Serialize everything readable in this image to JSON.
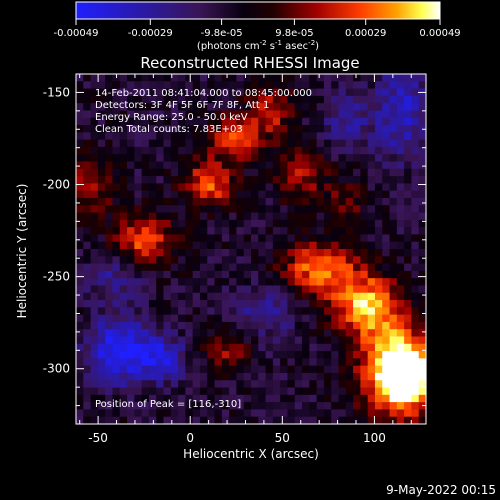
{
  "chart_data": {
    "type": "heatmap",
    "title": "Reconstructed RHESSI Image",
    "xlabel": "Heliocentric X (arcsec)",
    "ylabel": "Heliocentric Y (arcsec)",
    "xlim": [
      -62,
      128
    ],
    "ylim": [
      -330,
      -140
    ],
    "x_ticks": [
      -50,
      0,
      50,
      100
    ],
    "y_ticks": [
      -150,
      -200,
      -250,
      -300
    ],
    "colorbar": {
      "colormap": "RHESSI blue-black-red-yellow-white",
      "range": [
        -0.00049,
        0.00049
      ],
      "tick_values": [
        -0.00049,
        -0.00029,
        -9.8e-05,
        9.8e-05,
        0.00029,
        0.00049
      ],
      "tick_labels": [
        "-0.00049",
        "-0.00029",
        "-9.8e-05",
        "9.8e-05",
        "0.00029",
        "0.00049"
      ],
      "units_label": "(photons cm",
      "units_sup1": "-2",
      "units_mid": " s",
      "units_sup2": "-1",
      "units_mid2": " asec",
      "units_sup3": "-2",
      "units_end": ")"
    },
    "annotations": [
      "14-Feb-2011 08:41:04.000 to 08:45:00.000",
      "Detectors: 3F 4F 5F 6F 7F 8F, Att 1",
      "Energy Range: 25.0 - 50.0 keV",
      "Clean     Total counts: 7.83E+03"
    ],
    "peak_label": "Position of Peak = [116,-310]",
    "peak": [
      116,
      -310
    ],
    "features_note_values": {
      "bright_regions": [
        {
          "x": 110,
          "y": -300,
          "level": 1.0,
          "sx": 14,
          "sy": 18
        },
        {
          "x": 95,
          "y": -265,
          "level": 0.95,
          "sx": 13,
          "sy": 12
        },
        {
          "x": 70,
          "y": -245,
          "level": 0.85,
          "sx": 14,
          "sy": 10
        },
        {
          "x": 118,
          "y": -305,
          "level": 1.0,
          "sx": 10,
          "sy": 12
        },
        {
          "x": -25,
          "y": -230,
          "level": 0.75,
          "sx": 12,
          "sy": 10
        },
        {
          "x": 10,
          "y": -200,
          "level": 0.75,
          "sx": 10,
          "sy": 9
        },
        {
          "x": 25,
          "y": -175,
          "level": 0.65,
          "sx": 11,
          "sy": 9
        },
        {
          "x": 45,
          "y": -160,
          "level": 0.55,
          "sx": 9,
          "sy": 9
        },
        {
          "x": -55,
          "y": -200,
          "level": 0.55,
          "sx": 9,
          "sy": 12
        },
        {
          "x": 20,
          "y": -290,
          "level": 0.45,
          "sx": 9,
          "sy": 8
        },
        {
          "x": 60,
          "y": -195,
          "level": 0.55,
          "sx": 10,
          "sy": 10
        },
        {
          "x": 85,
          "y": -210,
          "level": 0.4,
          "sx": 8,
          "sy": 8
        }
      ],
      "dark_regions": [
        {
          "x": -38,
          "y": -290,
          "level": -0.85,
          "sx": 12,
          "sy": 12
        },
        {
          "x": -15,
          "y": -295,
          "level": -0.6,
          "sx": 8,
          "sy": 8
        },
        {
          "x": 115,
          "y": -160,
          "level": -0.55,
          "sx": 10,
          "sy": 18
        },
        {
          "x": 85,
          "y": -165,
          "level": -0.4,
          "sx": 9,
          "sy": 10
        },
        {
          "x": -40,
          "y": -250,
          "level": -0.35,
          "sx": 12,
          "sy": 10
        },
        {
          "x": 40,
          "y": -270,
          "level": -0.35,
          "sx": 12,
          "sy": 10
        }
      ]
    }
  },
  "footer": {
    "date_label": "9-May-2022 00:15"
  }
}
